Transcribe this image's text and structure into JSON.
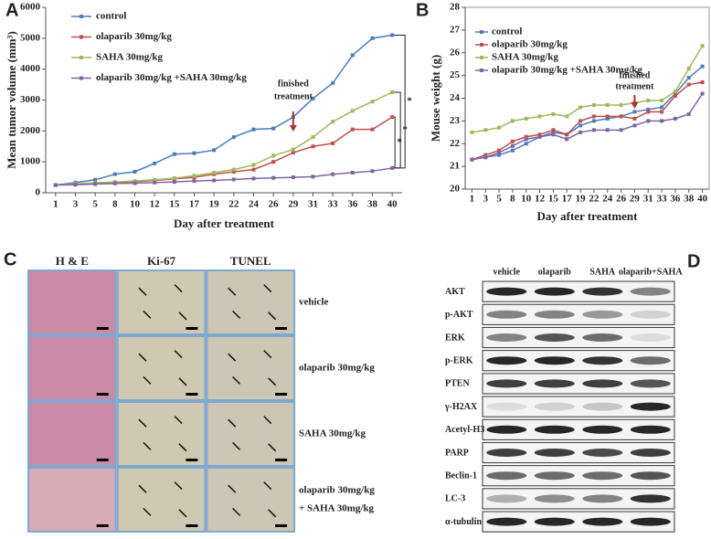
{
  "chart_data": [
    {
      "type": "line",
      "panel_label": "A",
      "xlabel": "Day after treatment",
      "ylabel": "Mean tumor volume (mm³)",
      "categories": [
        1,
        3,
        5,
        8,
        10,
        12,
        15,
        17,
        19,
        22,
        24,
        26,
        29,
        31,
        33,
        36,
        38,
        40
      ],
      "ylim": [
        0,
        6000
      ],
      "yticks": [
        0,
        1000,
        2000,
        3000,
        4000,
        5000,
        6000
      ],
      "legend": "upper left",
      "annotation_lines": [
        "finished",
        "treatment"
      ],
      "significance": [
        "*",
        "*",
        "*"
      ],
      "series": [
        {
          "name": "control",
          "color": "#4a7ebb",
          "values": [
            250,
            330,
            420,
            600,
            680,
            950,
            1250,
            1280,
            1380,
            1800,
            2050,
            2080,
            2450,
            3050,
            3550,
            4450,
            5000,
            5100
          ]
        },
        {
          "name": "olaparib 30mg/kg",
          "color": "#c0504d",
          "values": [
            250,
            280,
            300,
            330,
            360,
            400,
            450,
            500,
            600,
            680,
            750,
            1000,
            1300,
            1500,
            1600,
            2050,
            2050,
            2450
          ]
        },
        {
          "name": "SAHA 30mg/kg",
          "color": "#9bbb59",
          "values": [
            250,
            290,
            320,
            350,
            380,
            420,
            470,
            550,
            650,
            750,
            900,
            1200,
            1400,
            1800,
            2300,
            2650,
            2950,
            3250
          ]
        },
        {
          "name": "olaparib 30mg/kg +SAHA 30mg/kg",
          "color": "#8064a2",
          "values": [
            250,
            260,
            280,
            300,
            310,
            330,
            350,
            380,
            400,
            430,
            460,
            480,
            500,
            520,
            600,
            650,
            700,
            800
          ]
        }
      ]
    },
    {
      "type": "line",
      "panel_label": "B",
      "xlabel": "Day after treatment",
      "ylabel": "Mouse weight (g)",
      "categories": [
        1,
        3,
        5,
        8,
        10,
        12,
        15,
        17,
        19,
        22,
        24,
        26,
        29,
        31,
        33,
        36,
        38,
        40
      ],
      "ylim": [
        20,
        28
      ],
      "yticks": [
        20,
        21,
        22,
        23,
        24,
        25,
        26,
        27,
        28
      ],
      "legend": "upper left",
      "annotation_lines": [
        "finished",
        "treatment"
      ],
      "series": [
        {
          "name": "control",
          "color": "#4a7ebb",
          "values": [
            21.3,
            21.4,
            21.5,
            21.7,
            22.0,
            22.3,
            22.5,
            22.4,
            22.8,
            23.0,
            23.1,
            23.2,
            23.4,
            23.5,
            23.6,
            24.2,
            24.9,
            25.4
          ]
        },
        {
          "name": "olaparib 30mg/kg",
          "color": "#c0504d",
          "values": [
            21.3,
            21.5,
            21.7,
            22.1,
            22.3,
            22.4,
            22.6,
            22.4,
            23.0,
            23.2,
            23.2,
            23.2,
            23.1,
            23.4,
            23.4,
            24.1,
            24.6,
            24.7
          ]
        },
        {
          "name": "SAHA 30mg/kg",
          "color": "#9bbb59",
          "values": [
            22.5,
            22.6,
            22.7,
            23.0,
            23.1,
            23.2,
            23.3,
            23.2,
            23.6,
            23.7,
            23.7,
            23.7,
            23.8,
            23.9,
            23.9,
            24.3,
            25.3,
            26.3
          ]
        },
        {
          "name": "olaparib 30mg/kg +SAHA 30mg/kg",
          "color": "#8064a2",
          "values": [
            21.3,
            21.4,
            21.6,
            21.9,
            22.2,
            22.3,
            22.4,
            22.2,
            22.5,
            22.6,
            22.6,
            22.6,
            22.8,
            23.0,
            23.0,
            23.1,
            23.3,
            24.2
          ]
        }
      ]
    }
  ],
  "histology": {
    "panel_label": "C",
    "columns": [
      "H & E",
      "Ki-67",
      "TUNEL"
    ],
    "row_labels": [
      "vehicle",
      "olaparib 30mg/kg",
      "SAHA 30mg/kg",
      [
        "olaparib 30mg/kg",
        "+ SAHA 30mg/kg"
      ]
    ]
  },
  "western_blot": {
    "panel_label": "D",
    "columns": [
      "vehicle",
      "olaparib",
      "SAHA",
      "olaparib+SAHA"
    ],
    "rows": [
      "AKT",
      "p-AKT",
      "ERK",
      "p-ERK",
      "PTEN",
      "γ-H2AX",
      "Acetyl-H3",
      "PARP",
      "Beclin-1",
      "LC-3",
      "α-tubulin"
    ]
  }
}
